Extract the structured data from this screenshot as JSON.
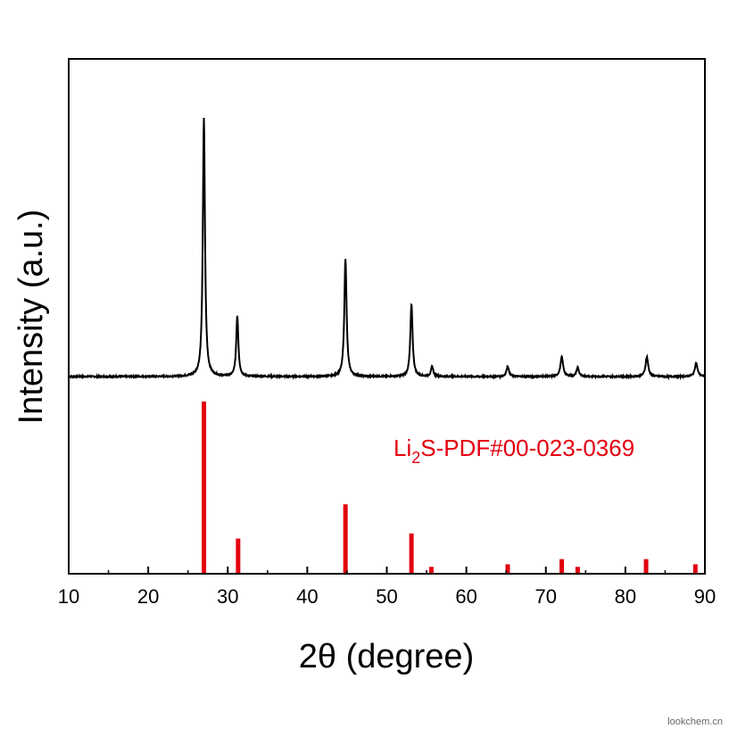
{
  "chart_data": {
    "type": "line",
    "xlabel": "2θ (degree)",
    "ylabel": "Intensity (a.u.)",
    "xlim": [
      10,
      90
    ],
    "x_ticks": [
      10,
      20,
      30,
      40,
      50,
      60,
      70,
      80,
      90
    ],
    "y_ticks_visible": false,
    "grid": false,
    "measured": {
      "color": "#000000",
      "baseline": 0.2,
      "peaks": [
        {
          "x": 27.0,
          "y": 7.9,
          "w": 0.16
        },
        {
          "x": 31.2,
          "y": 1.85,
          "w": 0.16
        },
        {
          "x": 44.8,
          "y": 3.6,
          "w": 0.17
        },
        {
          "x": 53.1,
          "y": 2.2,
          "w": 0.17
        },
        {
          "x": 55.7,
          "y": 0.3,
          "w": 0.17
        },
        {
          "x": 65.2,
          "y": 0.32,
          "w": 0.18
        },
        {
          "x": 72.0,
          "y": 0.6,
          "w": 0.2
        },
        {
          "x": 74.0,
          "y": 0.28,
          "w": 0.18
        },
        {
          "x": 82.7,
          "y": 0.6,
          "w": 0.2
        },
        {
          "x": 88.9,
          "y": 0.42,
          "w": 0.2
        }
      ]
    },
    "reference": {
      "label_main": "Li",
      "label_sub": "2",
      "label_rest": "S-PDF#00-023-0369",
      "color": "#e3000f",
      "sticks": [
        {
          "x": 27.0,
          "y": 100
        },
        {
          "x": 31.3,
          "y": 20
        },
        {
          "x": 44.8,
          "y": 40
        },
        {
          "x": 53.1,
          "y": 23
        },
        {
          "x": 55.6,
          "y": 3.5
        },
        {
          "x": 65.2,
          "y": 5
        },
        {
          "x": 72.0,
          "y": 8
        },
        {
          "x": 74.0,
          "y": 3.5
        },
        {
          "x": 82.6,
          "y": 8
        },
        {
          "x": 88.8,
          "y": 5
        }
      ]
    }
  },
  "watermark": "lookchem.cn"
}
